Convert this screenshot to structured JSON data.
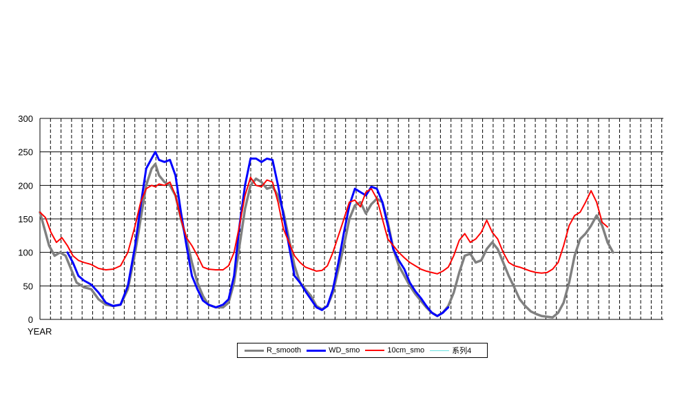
{
  "chart_data": {
    "type": "line",
    "title": "",
    "xlabel": "YEAR",
    "ylabel": "",
    "ylim": [
      0,
      300
    ],
    "yticks": [
      "0",
      "50",
      "100",
      "150",
      "200",
      "250",
      "300"
    ],
    "grid": true,
    "legend_position": "bottom",
    "series": [
      {
        "name": "R_smooth",
        "color": "#808080",
        "points": [
          [
            0,
            160
          ],
          [
            2,
            140
          ],
          [
            5,
            110
          ],
          [
            8,
            95
          ],
          [
            11,
            100
          ],
          [
            14,
            95
          ],
          [
            17,
            75
          ],
          [
            20,
            55
          ],
          [
            24,
            48
          ],
          [
            28,
            45
          ],
          [
            32,
            30
          ],
          [
            36,
            22
          ],
          [
            40,
            20
          ],
          [
            44,
            22
          ],
          [
            48,
            45
          ],
          [
            52,
            100
          ],
          [
            55,
            150
          ],
          [
            58,
            200
          ],
          [
            61,
            225
          ],
          [
            63,
            232
          ],
          [
            65,
            215
          ],
          [
            68,
            205
          ],
          [
            71,
            200
          ],
          [
            74,
            185
          ],
          [
            77,
            150
          ],
          [
            80,
            120
          ],
          [
            83,
            85
          ],
          [
            86,
            55
          ],
          [
            89,
            35
          ],
          [
            92,
            22
          ],
          [
            96,
            18
          ],
          [
            100,
            18
          ],
          [
            103,
            25
          ],
          [
            106,
            55
          ],
          [
            109,
            110
          ],
          [
            112,
            165
          ],
          [
            115,
            200
          ],
          [
            118,
            210
          ],
          [
            121,
            205
          ],
          [
            124,
            195
          ],
          [
            127,
            198
          ],
          [
            130,
            185
          ],
          [
            133,
            160
          ],
          [
            136,
            120
          ],
          [
            139,
            80
          ],
          [
            142,
            55
          ],
          [
            145,
            45
          ],
          [
            148,
            35
          ],
          [
            151,
            20
          ],
          [
            154,
            15
          ],
          [
            157,
            20
          ],
          [
            160,
            40
          ],
          [
            163,
            75
          ],
          [
            166,
            110
          ],
          [
            169,
            150
          ],
          [
            172,
            170
          ],
          [
            175,
            175
          ],
          [
            178,
            158
          ],
          [
            181,
            172
          ],
          [
            184,
            180
          ],
          [
            187,
            175
          ],
          [
            190,
            145
          ],
          [
            193,
            105
          ],
          [
            196,
            80
          ],
          [
            199,
            65
          ],
          [
            202,
            50
          ],
          [
            205,
            38
          ],
          [
            208,
            28
          ],
          [
            211,
            18
          ],
          [
            214,
            10
          ],
          [
            217,
            5
          ],
          [
            220,
            10
          ],
          [
            223,
            20
          ],
          [
            226,
            40
          ],
          [
            229,
            70
          ],
          [
            232,
            95
          ],
          [
            235,
            98
          ],
          [
            238,
            85
          ],
          [
            241,
            88
          ],
          [
            244,
            105
          ],
          [
            247,
            115
          ],
          [
            250,
            105
          ],
          [
            253,
            85
          ],
          [
            256,
            65
          ],
          [
            259,
            48
          ],
          [
            262,
            30
          ],
          [
            265,
            20
          ],
          [
            268,
            12
          ],
          [
            271,
            8
          ],
          [
            274,
            5
          ],
          [
            277,
            4
          ],
          [
            280,
            3
          ],
          [
            283,
            10
          ],
          [
            286,
            25
          ],
          [
            289,
            55
          ],
          [
            292,
            95
          ],
          [
            295,
            120
          ],
          [
            298,
            128
          ],
          [
            301,
            140
          ],
          [
            304,
            155
          ],
          [
            307,
            140
          ],
          [
            310,
            115
          ],
          [
            313,
            100
          ]
        ]
      },
      {
        "name": "WD_smo",
        "color": "#0000ff",
        "points": [
          [
            15,
            100
          ],
          [
            18,
            85
          ],
          [
            21,
            65
          ],
          [
            24,
            58
          ],
          [
            28,
            52
          ],
          [
            32,
            40
          ],
          [
            36,
            25
          ],
          [
            40,
            20
          ],
          [
            44,
            22
          ],
          [
            48,
            50
          ],
          [
            52,
            110
          ],
          [
            55,
            170
          ],
          [
            58,
            225
          ],
          [
            61,
            240
          ],
          [
            63,
            250
          ],
          [
            65,
            238
          ],
          [
            68,
            235
          ],
          [
            71,
            238
          ],
          [
            74,
            215
          ],
          [
            77,
            160
          ],
          [
            80,
            110
          ],
          [
            83,
            65
          ],
          [
            86,
            45
          ],
          [
            89,
            28
          ],
          [
            92,
            22
          ],
          [
            96,
            18
          ],
          [
            100,
            22
          ],
          [
            103,
            30
          ],
          [
            106,
            65
          ],
          [
            109,
            140
          ],
          [
            112,
            200
          ],
          [
            115,
            240
          ],
          [
            118,
            240
          ],
          [
            121,
            235
          ],
          [
            124,
            240
          ],
          [
            127,
            238
          ],
          [
            130,
            200
          ],
          [
            133,
            155
          ],
          [
            136,
            110
          ],
          [
            139,
            65
          ],
          [
            142,
            55
          ],
          [
            145,
            42
          ],
          [
            148,
            30
          ],
          [
            151,
            18
          ],
          [
            154,
            14
          ],
          [
            157,
            20
          ],
          [
            160,
            45
          ],
          [
            163,
            85
          ],
          [
            166,
            130
          ],
          [
            169,
            170
          ],
          [
            172,
            195
          ],
          [
            175,
            190
          ],
          [
            178,
            185
          ],
          [
            181,
            198
          ],
          [
            184,
            195
          ],
          [
            187,
            175
          ],
          [
            190,
            140
          ],
          [
            193,
            105
          ],
          [
            196,
            88
          ],
          [
            199,
            75
          ],
          [
            202,
            55
          ],
          [
            205,
            42
          ],
          [
            208,
            32
          ],
          [
            211,
            20
          ],
          [
            214,
            10
          ],
          [
            217,
            5
          ],
          [
            220,
            10
          ],
          [
            223,
            18
          ]
        ]
      },
      {
        "name": "10cm_smo",
        "color": "#ff0000",
        "points": [
          [
            0,
            160
          ],
          [
            3,
            152
          ],
          [
            6,
            130
          ],
          [
            9,
            115
          ],
          [
            12,
            122
          ],
          [
            15,
            110
          ],
          [
            18,
            95
          ],
          [
            21,
            88
          ],
          [
            24,
            85
          ],
          [
            28,
            82
          ],
          [
            32,
            76
          ],
          [
            36,
            74
          ],
          [
            40,
            75
          ],
          [
            44,
            80
          ],
          [
            48,
            100
          ],
          [
            52,
            140
          ],
          [
            55,
            175
          ],
          [
            58,
            195
          ],
          [
            61,
            200
          ],
          [
            63,
            198
          ],
          [
            65,
            202
          ],
          [
            68,
            200
          ],
          [
            71,
            205
          ],
          [
            74,
            185
          ],
          [
            77,
            150
          ],
          [
            80,
            122
          ],
          [
            83,
            110
          ],
          [
            86,
            95
          ],
          [
            89,
            78
          ],
          [
            92,
            75
          ],
          [
            96,
            74
          ],
          [
            100,
            74
          ],
          [
            103,
            80
          ],
          [
            106,
            100
          ],
          [
            109,
            140
          ],
          [
            112,
            185
          ],
          [
            115,
            212
          ],
          [
            118,
            200
          ],
          [
            121,
            198
          ],
          [
            124,
            208
          ],
          [
            127,
            205
          ],
          [
            130,
            175
          ],
          [
            133,
            135
          ],
          [
            136,
            115
          ],
          [
            139,
            95
          ],
          [
            142,
            85
          ],
          [
            145,
            78
          ],
          [
            148,
            75
          ],
          [
            151,
            72
          ],
          [
            154,
            73
          ],
          [
            157,
            80
          ],
          [
            160,
            100
          ],
          [
            163,
            125
          ],
          [
            166,
            150
          ],
          [
            169,
            175
          ],
          [
            172,
            178
          ],
          [
            175,
            168
          ],
          [
            178,
            190
          ],
          [
            181,
            195
          ],
          [
            184,
            180
          ],
          [
            187,
            150
          ],
          [
            190,
            120
          ],
          [
            193,
            110
          ],
          [
            196,
            100
          ],
          [
            199,
            92
          ],
          [
            202,
            85
          ],
          [
            205,
            80
          ],
          [
            208,
            75
          ],
          [
            211,
            72
          ],
          [
            214,
            70
          ],
          [
            217,
            68
          ],
          [
            220,
            72
          ],
          [
            223,
            78
          ],
          [
            226,
            95
          ],
          [
            229,
            118
          ],
          [
            232,
            128
          ],
          [
            235,
            115
          ],
          [
            238,
            120
          ],
          [
            241,
            130
          ],
          [
            244,
            148
          ],
          [
            247,
            130
          ],
          [
            250,
            120
          ],
          [
            253,
            100
          ],
          [
            256,
            85
          ],
          [
            259,
            80
          ],
          [
            262,
            78
          ],
          [
            265,
            75
          ],
          [
            268,
            72
          ],
          [
            271,
            70
          ],
          [
            274,
            69
          ],
          [
            277,
            70
          ],
          [
            280,
            75
          ],
          [
            283,
            85
          ],
          [
            286,
            110
          ],
          [
            289,
            140
          ],
          [
            292,
            155
          ],
          [
            295,
            160
          ],
          [
            298,
            175
          ],
          [
            301,
            192
          ],
          [
            304,
            175
          ],
          [
            307,
            145
          ],
          [
            310,
            138
          ]
        ]
      },
      {
        "name": "系列4",
        "color": "#66e0e0",
        "points": []
      }
    ]
  }
}
